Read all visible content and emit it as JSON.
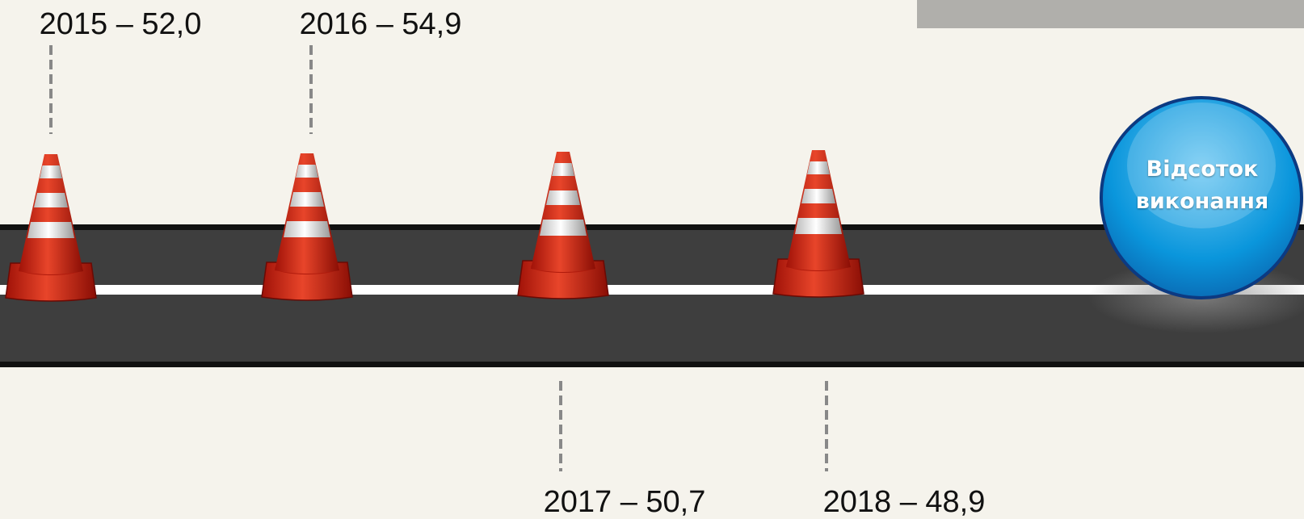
{
  "milestones": [
    {
      "label": "2015 – 52,0"
    },
    {
      "label": "2016 – 54,9"
    },
    {
      "label": "2017 – 50,7"
    },
    {
      "label": "2018 – 48,9"
    }
  ],
  "badge": {
    "text": "Відсоток виконання"
  }
}
